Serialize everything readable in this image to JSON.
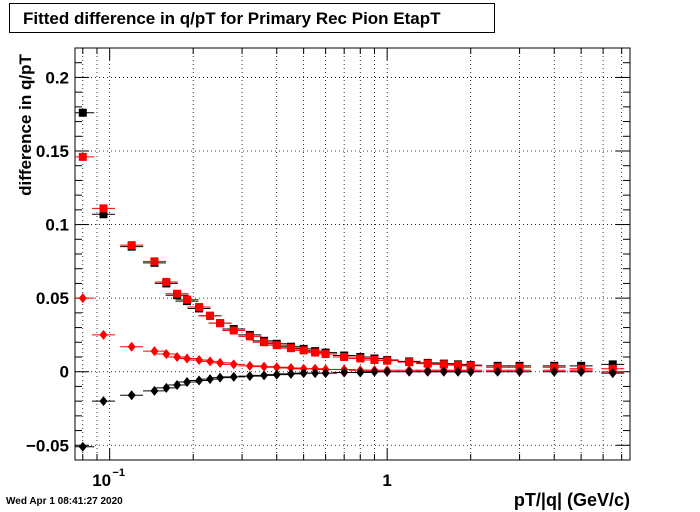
{
  "chart_data": {
    "type": "scatter",
    "title": "Fitted difference in q/pT for Primary Rec Pion EtapT",
    "xlabel": "pT/|q| (GeV/c)",
    "ylabel": "difference in q/pT",
    "x_scale": "log",
    "xlim": [
      0.075,
      7.5
    ],
    "ylim": [
      -0.06,
      0.22
    ],
    "x_tick_labels": [
      "10^-1",
      "1"
    ],
    "y_ticks": [
      -0.05,
      0,
      0.05,
      0.1,
      0.15,
      0.2
    ],
    "y_tick_labels": [
      "−0.05",
      "0",
      "0.05",
      "0.1",
      "0.15",
      "0.2"
    ],
    "grid": true,
    "series": [
      {
        "color": "#000000",
        "marker": "square",
        "x": [
          0.08,
          0.095,
          0.12,
          0.145,
          0.16,
          0.175,
          0.19,
          0.21,
          0.23,
          0.25,
          0.28,
          0.32,
          0.36,
          0.4,
          0.45,
          0.5,
          0.55,
          0.6,
          0.7,
          0.8,
          0.9,
          1.0,
          1.2,
          1.4,
          1.6,
          1.8,
          2.0,
          2.5,
          3.0,
          4.0,
          5.0,
          6.5
        ],
        "y": [
          0.176,
          0.107,
          0.085,
          0.074,
          0.06,
          0.052,
          0.048,
          0.043,
          0.038,
          0.033,
          0.029,
          0.025,
          0.021,
          0.019,
          0.017,
          0.0155,
          0.014,
          0.013,
          0.011,
          0.01,
          0.009,
          0.008,
          0.007,
          0.006,
          0.0055,
          0.005,
          0.0045,
          0.004,
          0.004,
          0.004,
          0.004,
          0.005
        ]
      },
      {
        "color": "#ff0000",
        "marker": "square",
        "x": [
          0.08,
          0.095,
          0.12,
          0.145,
          0.16,
          0.175,
          0.19,
          0.21,
          0.23,
          0.25,
          0.28,
          0.32,
          0.36,
          0.4,
          0.45,
          0.5,
          0.55,
          0.6,
          0.7,
          0.8,
          0.9,
          1.0,
          1.2,
          1.4,
          1.6,
          1.8,
          2.0,
          2.5,
          3.0,
          4.0,
          5.0,
          6.5
        ],
        "y": [
          0.146,
          0.111,
          0.086,
          0.075,
          0.061,
          0.053,
          0.049,
          0.044,
          0.038,
          0.033,
          0.028,
          0.024,
          0.02,
          0.018,
          0.016,
          0.0145,
          0.013,
          0.012,
          0.01,
          0.009,
          0.008,
          0.0075,
          0.0065,
          0.0055,
          0.005,
          0.0045,
          0.004,
          0.003,
          0.003,
          0.003,
          0.002,
          0.002
        ]
      },
      {
        "color": "#ff0000",
        "marker": "diamond",
        "x": [
          0.08,
          0.095,
          0.12,
          0.145,
          0.16,
          0.175,
          0.19,
          0.21,
          0.23,
          0.25,
          0.28,
          0.32,
          0.36,
          0.4,
          0.45,
          0.5,
          0.55,
          0.6,
          0.7,
          0.8,
          0.9,
          1.0,
          1.2,
          1.4,
          1.6,
          1.8,
          2.0,
          2.5,
          3.0,
          4.0,
          5.0,
          6.5
        ],
        "y": [
          0.05,
          0.025,
          0.017,
          0.014,
          0.012,
          0.01,
          0.009,
          0.008,
          0.007,
          0.006,
          0.005,
          0.004,
          0.0035,
          0.003,
          0.0025,
          0.002,
          0.002,
          0.0015,
          0.0015,
          0.001,
          0.001,
          0.001,
          0.001,
          0.001,
          0.001,
          0.001,
          0.001,
          0.001,
          0.001,
          0.001,
          0.001,
          0.0
        ]
      },
      {
        "color": "#000000",
        "marker": "diamond",
        "x": [
          0.08,
          0.095,
          0.12,
          0.145,
          0.16,
          0.175,
          0.19,
          0.21,
          0.23,
          0.25,
          0.28,
          0.32,
          0.36,
          0.4,
          0.45,
          0.5,
          0.55,
          0.6,
          0.7,
          0.8,
          0.9,
          1.0,
          1.2,
          1.4,
          1.6,
          1.8,
          2.0,
          2.5,
          3.0,
          4.0,
          5.0,
          6.5
        ],
        "y": [
          -0.051,
          -0.02,
          -0.016,
          -0.013,
          -0.011,
          -0.009,
          -0.007,
          -0.006,
          -0.005,
          -0.004,
          -0.0035,
          -0.003,
          -0.0025,
          -0.002,
          -0.0015,
          -0.001,
          -0.001,
          -0.001,
          -0.0005,
          -0.0005,
          0.0,
          0.0,
          0.0,
          0.0,
          0.0,
          0.0,
          0.0,
          0.0,
          0.0,
          0.0,
          0.0,
          -0.001
        ]
      }
    ]
  },
  "timestamp": "Wed Apr  1 08:41:27 2020"
}
